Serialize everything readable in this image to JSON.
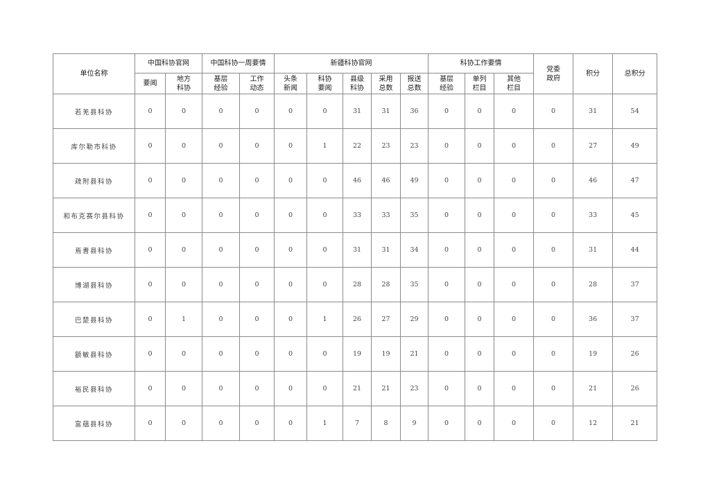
{
  "table": {
    "header": {
      "unit_name": "单位名称",
      "groups": [
        "中国科协官网",
        "中国科协一周要情",
        "新疆科协官网",
        "科协工作要情"
      ],
      "subcols": [
        "要闻",
        "地方\n科协",
        "基层\n经验",
        "工作\n动态",
        "头条\n新闻",
        "科协\n要闻",
        "县级\n科协",
        "采用\n总数",
        "报送\n总数",
        "基层\n经验",
        "单列\n栏目",
        "其他\n栏目"
      ],
      "party_gov": "党委\n政府",
      "score": "积分",
      "total_score": "总积分"
    },
    "rows": [
      {
        "name": "若羌县科协",
        "values": [
          "0",
          "0",
          "0",
          "0",
          "0",
          "0",
          "31",
          "31",
          "36",
          "0",
          "0",
          "0",
          "0",
          "31",
          "54"
        ]
      },
      {
        "name": "库尔勒市科协",
        "values": [
          "0",
          "0",
          "0",
          "0",
          "0",
          "1",
          "22",
          "23",
          "23",
          "0",
          "0",
          "0",
          "0",
          "27",
          "49"
        ]
      },
      {
        "name": "疏附县科协",
        "values": [
          "0",
          "0",
          "0",
          "0",
          "0",
          "0",
          "46",
          "46",
          "49",
          "0",
          "0",
          "0",
          "0",
          "46",
          "47"
        ]
      },
      {
        "name": "和布克赛尔县科协",
        "values": [
          "0",
          "0",
          "0",
          "0",
          "0",
          "0",
          "33",
          "33",
          "35",
          "0",
          "0",
          "0",
          "0",
          "33",
          "45"
        ]
      },
      {
        "name": "焉耆县科协",
        "values": [
          "0",
          "0",
          "0",
          "0",
          "0",
          "0",
          "31",
          "31",
          "34",
          "0",
          "0",
          "0",
          "0",
          "31",
          "44"
        ]
      },
      {
        "name": "博湖县科协",
        "values": [
          "0",
          "0",
          "0",
          "0",
          "0",
          "0",
          "28",
          "28",
          "35",
          "0",
          "0",
          "0",
          "0",
          "28",
          "37"
        ]
      },
      {
        "name": "巴楚县科协",
        "values": [
          "0",
          "1",
          "0",
          "0",
          "0",
          "1",
          "26",
          "27",
          "29",
          "0",
          "0",
          "0",
          "0",
          "36",
          "37"
        ]
      },
      {
        "name": "额敏县科协",
        "values": [
          "0",
          "0",
          "0",
          "0",
          "0",
          "0",
          "19",
          "19",
          "21",
          "0",
          "0",
          "0",
          "0",
          "19",
          "26"
        ]
      },
      {
        "name": "裕民县科协",
        "values": [
          "0",
          "0",
          "0",
          "0",
          "0",
          "0",
          "21",
          "21",
          "23",
          "0",
          "0",
          "0",
          "0",
          "21",
          "26"
        ]
      },
      {
        "name": "富蕴县科协",
        "values": [
          "0",
          "0",
          "0",
          "0",
          "0",
          "1",
          "7",
          "8",
          "9",
          "0",
          "0",
          "0",
          "0",
          "12",
          "21"
        ]
      }
    ]
  }
}
